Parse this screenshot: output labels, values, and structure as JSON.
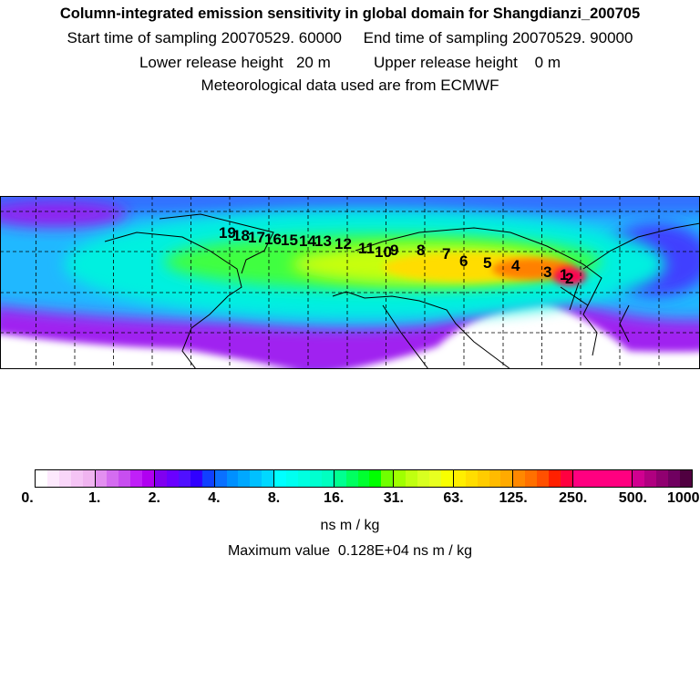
{
  "header": {
    "title": "Column-integrated emission sensitivity in global domain for Shangdianzi_200705",
    "sampling": "Start time of sampling 20070529. 60000     End time of sampling 20070529. 90000",
    "release": "Lower release height   20 m          Upper release height    0 m",
    "met": "Meteorological data used are from ECMWF"
  },
  "map": {
    "trajectory_labels": [
      "1",
      "2",
      "3",
      "4",
      "5",
      "6",
      "7",
      "8",
      "9",
      "10",
      "11",
      "12",
      "13",
      "14",
      "15",
      "16",
      "17",
      "18",
      "19"
    ]
  },
  "colorbar": {
    "ticks": [
      "0.",
      "1.",
      "2.",
      "4.",
      "8.",
      "16.",
      "31.",
      "63.",
      "125.",
      "250.",
      "500.",
      "1000."
    ],
    "groups": [
      [
        "#ffffff",
        "#fde9fd",
        "#f9d6f9",
        "#f5c4f5",
        "#f0b4f0"
      ],
      [
        "#e38ff0",
        "#d46cf0",
        "#c84ef0",
        "#c020f8",
        "#b000f0"
      ],
      [
        "#8000f0",
        "#6a00ff",
        "#5010ff",
        "#3000ff",
        "#1040ff"
      ],
      [
        "#0a70ff",
        "#0090ff",
        "#00a8ff",
        "#00c0ff",
        "#00d8ff"
      ],
      [
        "#00ffff",
        "#00fff0",
        "#00ffe0",
        "#00ffd0",
        "#00ffc0"
      ],
      [
        "#00ff90",
        "#00ff60",
        "#00ff30",
        "#00ff00",
        "#70ff00"
      ],
      [
        "#a0ff00",
        "#c0ff10",
        "#d8ff20",
        "#e8ff20",
        "#f8ff00"
      ],
      [
        "#ffee00",
        "#ffdd00",
        "#ffcc00",
        "#ffbb00",
        "#ffaa00"
      ],
      [
        "#ff8800",
        "#ff7000",
        "#ff5000",
        "#ff2000",
        "#ff0040"
      ],
      [
        "#ff0080",
        "#ff0080",
        "#ff0080",
        "#ff0080",
        "#ff0080"
      ],
      [
        "#d00090",
        "#b00080",
        "#900070",
        "#700060",
        "#500040"
      ]
    ],
    "units": "ns m / kg",
    "max_value": "Maximum value  0.128E+04 ns m / kg"
  }
}
